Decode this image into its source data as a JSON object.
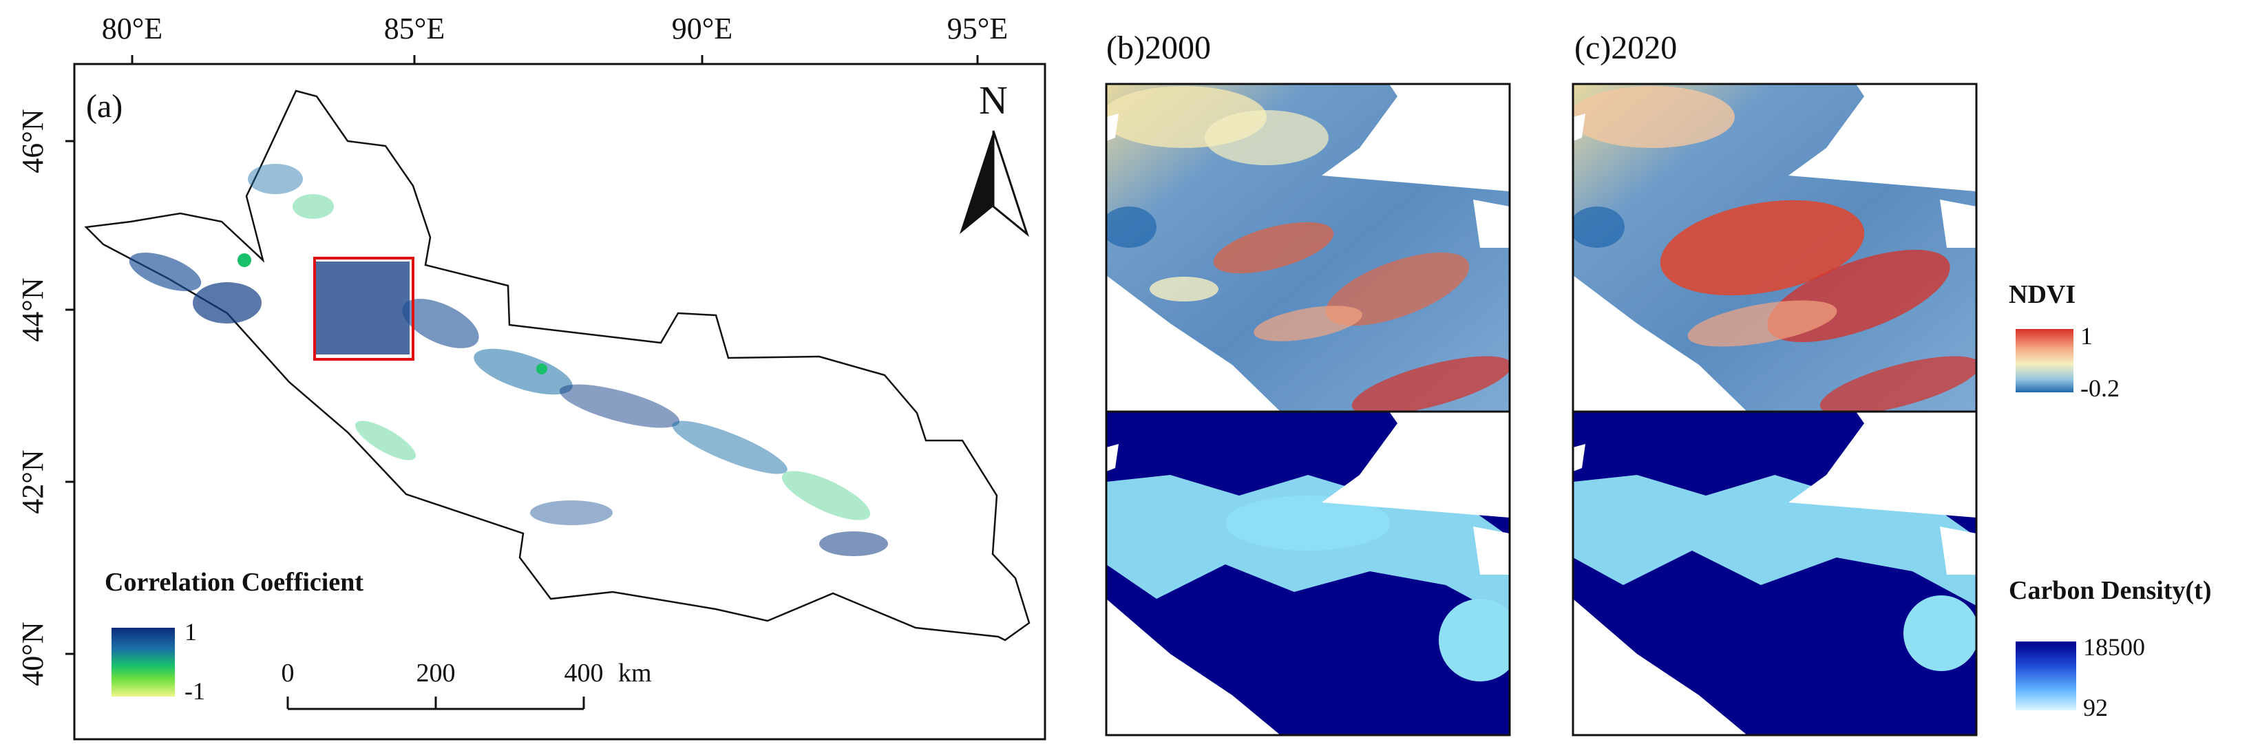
{
  "panels": {
    "a": {
      "label": "(a)",
      "lon_ticks": [
        "80°E",
        "85°E",
        "90°E",
        "95°E"
      ],
      "lat_ticks": [
        "46°N",
        "44°N",
        "42°N",
        "40°N"
      ],
      "north": "N",
      "legend": {
        "title": "Correlation Coefficient",
        "max": "1",
        "min": "-1",
        "colors": [
          "#0b2c7a",
          "#1a6fa8",
          "#19c06a",
          "#6ee03e",
          "#f2f58a"
        ]
      },
      "scale_bar": {
        "ticks": [
          "0",
          "200",
          "400"
        ],
        "unit": "km"
      }
    },
    "b": {
      "label": "(b)2000"
    },
    "c": {
      "label": "(c)2020"
    }
  },
  "legends": {
    "ndvi": {
      "title": "NDVI",
      "max": "1",
      "min": "-0.2",
      "colors": [
        "#d73027",
        "#f4a582",
        "#f6efc0",
        "#92c5de",
        "#2166ac"
      ]
    },
    "carbon": {
      "title": "Carbon Density(t)",
      "max": "18500",
      "min": "92",
      "colors": [
        "#00008b",
        "#1e4ad6",
        "#5fb4ff",
        "#aee6ff",
        "#d8f6ff"
      ]
    }
  }
}
